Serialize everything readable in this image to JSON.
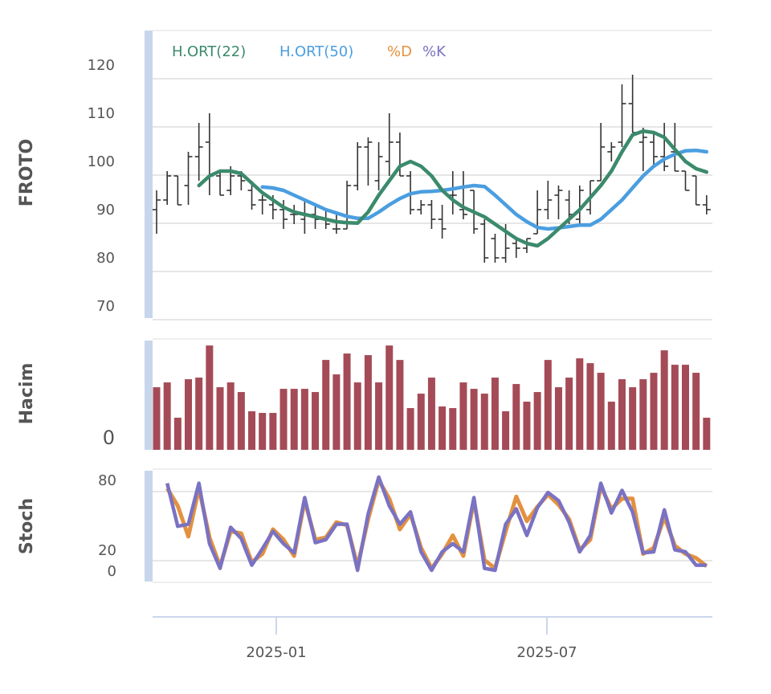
{
  "chart_data": [
    {
      "type": "ohlc",
      "title": "FROTO",
      "ylabel": "FROTO",
      "ylim": [
        70,
        120
      ],
      "yticks": [
        "120",
        "110",
        "100",
        "90",
        "80",
        "70"
      ],
      "grid": true,
      "legend": {
        "placement": "top-left",
        "entries": [
          {
            "label": "H.ORT(22)",
            "color": "#3b8a6c"
          },
          {
            "label": "H.ORT(50)",
            "color": "#4a9ee0"
          },
          {
            "label": "%D",
            "color": "#e3913f"
          },
          {
            "label": "%K",
            "color": "#7a72c2"
          }
        ]
      },
      "ohlc": [
        [
          90,
          94,
          85,
          92
        ],
        [
          92,
          98,
          91,
          97
        ],
        [
          97,
          97,
          91,
          91
        ],
        [
          95,
          102,
          91,
          101
        ],
        [
          101,
          108,
          96,
          103
        ],
        [
          104,
          110,
          93,
          97
        ],
        [
          97,
          98,
          93,
          93
        ],
        [
          94,
          99,
          93,
          97
        ],
        [
          97,
          98,
          94,
          96
        ],
        [
          94,
          96,
          90,
          91
        ],
        [
          92,
          93,
          89,
          92
        ],
        [
          91,
          93,
          88,
          90
        ],
        [
          90,
          92,
          86,
          88
        ],
        [
          89,
          91,
          87,
          89
        ],
        [
          88,
          92,
          85,
          89
        ],
        [
          89,
          91,
          86,
          88
        ],
        [
          88,
          90,
          86,
          87
        ],
        [
          86,
          89,
          85,
          86
        ],
        [
          86,
          96,
          86,
          95
        ],
        [
          95,
          104,
          94,
          103
        ],
        [
          103,
          105,
          95,
          104
        ],
        [
          96,
          104,
          94,
          101
        ],
        [
          100,
          110,
          97,
          104
        ],
        [
          104,
          106,
          97,
          97
        ],
        [
          97,
          98,
          89,
          90
        ],
        [
          90,
          92,
          89,
          91
        ],
        [
          91,
          92,
          86,
          88
        ],
        [
          88,
          91,
          84,
          86
        ],
        [
          93,
          98,
          89,
          93
        ],
        [
          90,
          98,
          88,
          89
        ],
        [
          94,
          94,
          85,
          86
        ],
        [
          87,
          88,
          79,
          80
        ],
        [
          84,
          85,
          79,
          80
        ],
        [
          80,
          87,
          79,
          82
        ],
        [
          83,
          84,
          80,
          82
        ],
        [
          82,
          84,
          81,
          84
        ],
        [
          85,
          94,
          85,
          90
        ],
        [
          90,
          96,
          88,
          92
        ],
        [
          93,
          95,
          88,
          94
        ],
        [
          92,
          94,
          87,
          89
        ],
        [
          88,
          95,
          87,
          94
        ],
        [
          90,
          96,
          89,
          96
        ],
        [
          96,
          108,
          96,
          103
        ],
        [
          102,
          104,
          100,
          103
        ],
        [
          104,
          116,
          103,
          112
        ],
        [
          112,
          118,
          106,
          106
        ],
        [
          104,
          107,
          98,
          105
        ],
        [
          104,
          106,
          99,
          101
        ],
        [
          101,
          108,
          98,
          99
        ],
        [
          102,
          108,
          98,
          98
        ],
        [
          98,
          98,
          94,
          94
        ],
        [
          97,
          97,
          91,
          91
        ],
        [
          91,
          93,
          89,
          90
        ]
      ],
      "series": [
        {
          "name": "H.ORT(22)",
          "color": "#3b8a6c",
          "values": [
            null,
            null,
            null,
            null,
            95,
            97,
            98,
            98,
            97.5,
            95.5,
            93.5,
            92,
            90.5,
            89.5,
            89,
            88.5,
            88,
            87.5,
            87.3,
            87.2,
            89.5,
            93,
            96,
            99,
            100,
            99,
            97,
            94,
            92,
            90.5,
            89.5,
            88.5,
            87,
            85.5,
            84,
            83,
            82.5,
            84,
            86,
            88,
            90,
            92.5,
            95,
            98,
            102,
            105.5,
            106.3,
            106,
            105,
            102.5,
            100,
            98.5,
            97.8
          ]
        },
        {
          "name": "H.ORT(50)",
          "color": "#4a9ee0",
          "values": [
            null,
            null,
            null,
            null,
            null,
            null,
            null,
            null,
            null,
            null,
            94.7,
            94.5,
            94,
            93,
            92,
            91,
            90,
            89.3,
            88.6,
            88.2,
            88.2,
            89.5,
            91,
            92.3,
            93.3,
            93.7,
            93.8,
            94,
            94.3,
            94.7,
            95,
            94.8,
            93,
            91,
            89,
            87.5,
            86.3,
            86,
            86.2,
            86.5,
            86.8,
            86.8,
            88,
            90,
            92,
            94.5,
            97,
            99,
            100.5,
            101.5,
            102.2,
            102.3,
            102
          ]
        }
      ]
    },
    {
      "type": "bar",
      "title": "Hacim",
      "ylabel": "Hacim",
      "yticks": [
        "0"
      ],
      "color": "#a44b57",
      "values": [
        23.4,
        25.2,
        12,
        26.4,
        27,
        39,
        23.4,
        25.2,
        21.6,
        14.4,
        13.8,
        13.8,
        22.8,
        22.8,
        22.8,
        21.6,
        33.6,
        28.2,
        36,
        25.2,
        35.4,
        25.2,
        39,
        33.6,
        15.6,
        21,
        27,
        16.2,
        15.6,
        25.2,
        22.8,
        21,
        27,
        14.4,
        24.6,
        18,
        21.6,
        33.6,
        23.4,
        27,
        34.2,
        32.4,
        28.8,
        18,
        26.4,
        23.4,
        26.4,
        28.8,
        37.2,
        31.8,
        31.8,
        28.8,
        12
      ]
    },
    {
      "type": "line",
      "title": "Stoch",
      "ylabel": "Stoch",
      "yticks": [
        "80",
        "20",
        "0"
      ],
      "series": [
        {
          "name": "%D",
          "color": "#e3913f",
          "values": [
            null,
            80,
            63,
            33,
            80,
            32,
            4,
            38,
            36,
            8,
            16,
            40,
            30,
            14,
            68,
            30,
            32,
            47,
            44,
            4,
            50,
            88,
            70,
            40,
            55,
            22,
            2,
            16,
            34,
            14,
            68,
            10,
            2,
            38,
            72,
            48,
            62,
            74,
            64,
            50,
            20,
            30,
            82,
            60,
            70,
            70,
            16,
            22,
            52,
            24,
            16,
            12,
            4
          ]
        },
        {
          "name": "%K",
          "color": "#7a72c2",
          "values": [
            null,
            85,
            43,
            45,
            85,
            26,
            2,
            42,
            31,
            5,
            21,
            38,
            26,
            17,
            71,
            27,
            30,
            45,
            45,
            0,
            55,
            91,
            63,
            45,
            57,
            18,
            0,
            18,
            26,
            18,
            71,
            2,
            0,
            45,
            60,
            34,
            61,
            76,
            68,
            47,
            18,
            34,
            85,
            56,
            78,
            57,
            17,
            18,
            59,
            20,
            18,
            5,
            5
          ]
        }
      ]
    }
  ],
  "x_axis": {
    "ticks": [
      "2025-01",
      "2025-07"
    ]
  }
}
